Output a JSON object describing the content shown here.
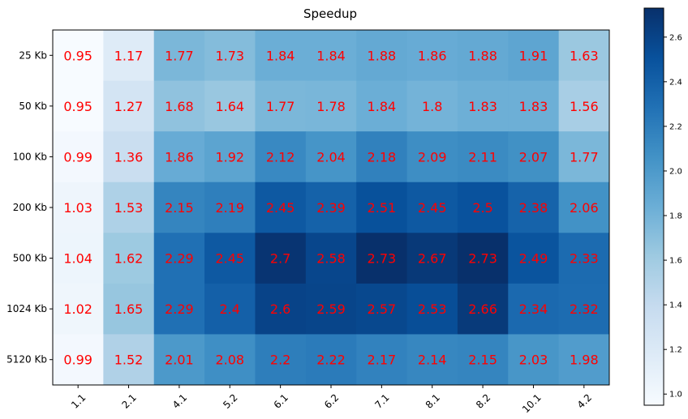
{
  "chart_data": {
    "type": "heatmap",
    "title": "Speedup",
    "xlabel": "",
    "ylabel": "",
    "x_categories": [
      "1.1",
      "2.1",
      "4.1",
      "5.2",
      "6.1",
      "6.2",
      "7.1",
      "8.1",
      "8.2",
      "10.1",
      "4.2"
    ],
    "y_categories": [
      "25 Kb",
      "50 Kb",
      "100 Kb",
      "200 Kb",
      "500 Kb",
      "1024 Kb",
      "5120 Kb"
    ],
    "values": [
      [
        0.95,
        1.17,
        1.77,
        1.73,
        1.84,
        1.84,
        1.88,
        1.86,
        1.88,
        1.91,
        1.63
      ],
      [
        0.95,
        1.27,
        1.68,
        1.64,
        1.77,
        1.78,
        1.84,
        1.8,
        1.83,
        1.83,
        1.56
      ],
      [
        0.99,
        1.36,
        1.86,
        1.92,
        2.12,
        2.04,
        2.18,
        2.09,
        2.11,
        2.07,
        1.77
      ],
      [
        1.03,
        1.53,
        2.15,
        2.19,
        2.45,
        2.39,
        2.51,
        2.45,
        2.5,
        2.38,
        2.06
      ],
      [
        1.04,
        1.62,
        2.29,
        2.45,
        2.7,
        2.58,
        2.73,
        2.67,
        2.73,
        2.49,
        2.33
      ],
      [
        1.02,
        1.65,
        2.29,
        2.4,
        2.6,
        2.59,
        2.57,
        2.53,
        2.66,
        2.34,
        2.32
      ],
      [
        0.99,
        1.52,
        2.01,
        2.08,
        2.2,
        2.22,
        2.17,
        2.14,
        2.15,
        2.03,
        1.98
      ]
    ],
    "colormap": "Blues",
    "annotation_color": "#ff0000",
    "colorbar": {
      "range": [
        0.95,
        2.73
      ],
      "ticks": [
        "1.0",
        "1.2",
        "1.4",
        "1.6",
        "1.8",
        "2.0",
        "2.2",
        "2.4",
        "2.6"
      ],
      "tick_values": [
        1.0,
        1.2,
        1.4,
        1.6,
        1.8,
        2.0,
        2.2,
        2.4,
        2.6
      ]
    },
    "x_tick_rotation": 45,
    "grid": false
  }
}
